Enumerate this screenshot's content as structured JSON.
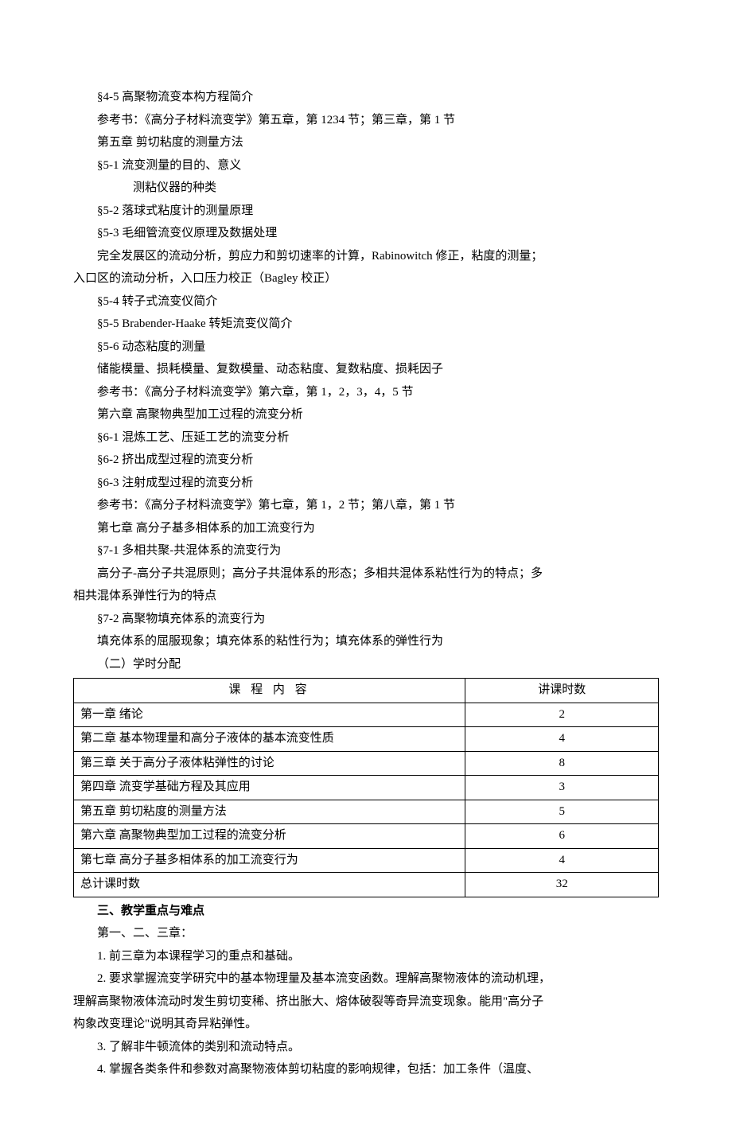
{
  "lines": [
    {
      "text": "§4-5  高聚物流变本构方程简介",
      "class": "content-line"
    },
    {
      "text": "参考书：《高分子材料流变学》第五章，第 1234 节；第三章，第 1 节",
      "class": "content-line"
    },
    {
      "text": "第五章    剪切粘度的测量方法",
      "class": "content-line"
    },
    {
      "text": "§5-1  流变测量的目的、意义",
      "class": "content-line"
    },
    {
      "text": "测粘仪器的种类",
      "class": "indent-more"
    },
    {
      "text": "§5-2  落球式粘度计的测量原理",
      "class": "content-line"
    },
    {
      "text": "§5-3  毛细管流变仪原理及数据处理",
      "class": "content-line"
    },
    {
      "text": "完全发展区的流动分析，剪应力和剪切速率的计算，Rabinowitch 修正，粘度的测量；",
      "class": "content-line"
    },
    {
      "text": "入口区的流动分析，入口压力校正（Bagley 校正）",
      "class": "no-indent"
    },
    {
      "text": "§5-4  转子式流变仪简介",
      "class": "content-line"
    },
    {
      "text": "§5-5  Brabender-Haake 转矩流变仪简介",
      "class": "content-line"
    },
    {
      "text": "§5-6  动态粘度的测量",
      "class": "content-line"
    },
    {
      "text": "储能模量、损耗模量、复数模量、动态粘度、复数粘度、损耗因子",
      "class": "content-line"
    },
    {
      "text": "参考书：《高分子材料流变学》第六章，第 1，2，3，4，5 节",
      "class": "content-line"
    },
    {
      "text": "第六章    高聚物典型加工过程的流变分析",
      "class": "content-line"
    },
    {
      "text": "§6-1  混炼工艺、压延工艺的流变分析",
      "class": "content-line"
    },
    {
      "text": "§6-2  挤出成型过程的流变分析",
      "class": "content-line"
    },
    {
      "text": "§6-3  注射成型过程的流变分析",
      "class": "content-line"
    },
    {
      "text": "参考书：《高分子材料流变学》第七章，第 1，2 节；第八章，第 1 节",
      "class": "content-line"
    },
    {
      "text": "第七章    高分子基多相体系的加工流变行为",
      "class": "content-line"
    },
    {
      "text": "§7-1  多相共聚-共混体系的流变行为",
      "class": "content-line"
    },
    {
      "text": "高分子-高分子共混原则；高分子共混体系的形态；多相共混体系粘性行为的特点；多",
      "class": "content-line"
    },
    {
      "text": "相共混体系弹性行为的特点",
      "class": "no-indent"
    },
    {
      "text": "§7-2  高聚物填充体系的流变行为",
      "class": "content-line"
    },
    {
      "text": "填充体系的屈服现象；填充体系的粘性行为；填充体系的弹性行为",
      "class": "content-line"
    },
    {
      "text": "（二）学时分配",
      "class": "content-line"
    }
  ],
  "table": {
    "columns": [
      "课 程 内 容",
      "讲课时数"
    ],
    "col_widths": [
      "67%",
      "33%"
    ],
    "rows": [
      [
        "第一章    绪论",
        "2"
      ],
      [
        "第二章    基本物理量和高分子液体的基本流变性质",
        "4"
      ],
      [
        "第三章    关于高分子液体粘弹性的讨论",
        "8"
      ],
      [
        "第四章    流变学基础方程及其应用",
        "3"
      ],
      [
        "第五章    剪切粘度的测量方法",
        "5"
      ],
      [
        "第六章    高聚物典型加工过程的流变分析",
        "6"
      ],
      [
        "第七章    高分子基多相体系的加工流变行为",
        "4"
      ],
      [
        "总计课时数",
        "32"
      ]
    ]
  },
  "after_lines": [
    {
      "text": "三、教学重点与难点",
      "class": "content-line bold"
    },
    {
      "text": "第一、二、三章：",
      "class": "content-line"
    },
    {
      "text": "1. 前三章为本课程学习的重点和基础。",
      "class": "content-line"
    },
    {
      "text": "2. 要求掌握流变学研究中的基本物理量及基本流变函数。理解高聚物液体的流动机理，",
      "class": "content-line"
    },
    {
      "text": "理解高聚物液体流动时发生剪切变稀、挤出胀大、熔体破裂等奇异流变现象。能用\"高分子",
      "class": "no-indent"
    },
    {
      "text": "构象改变理论\"说明其奇异粘弹性。",
      "class": "no-indent"
    },
    {
      "text": "3. 了解非牛顿流体的类别和流动特点。",
      "class": "content-line"
    },
    {
      "text": "4. 掌握各类条件和参数对高聚物液体剪切粘度的影响规律，包括：加工条件（温度、",
      "class": "content-line"
    }
  ]
}
